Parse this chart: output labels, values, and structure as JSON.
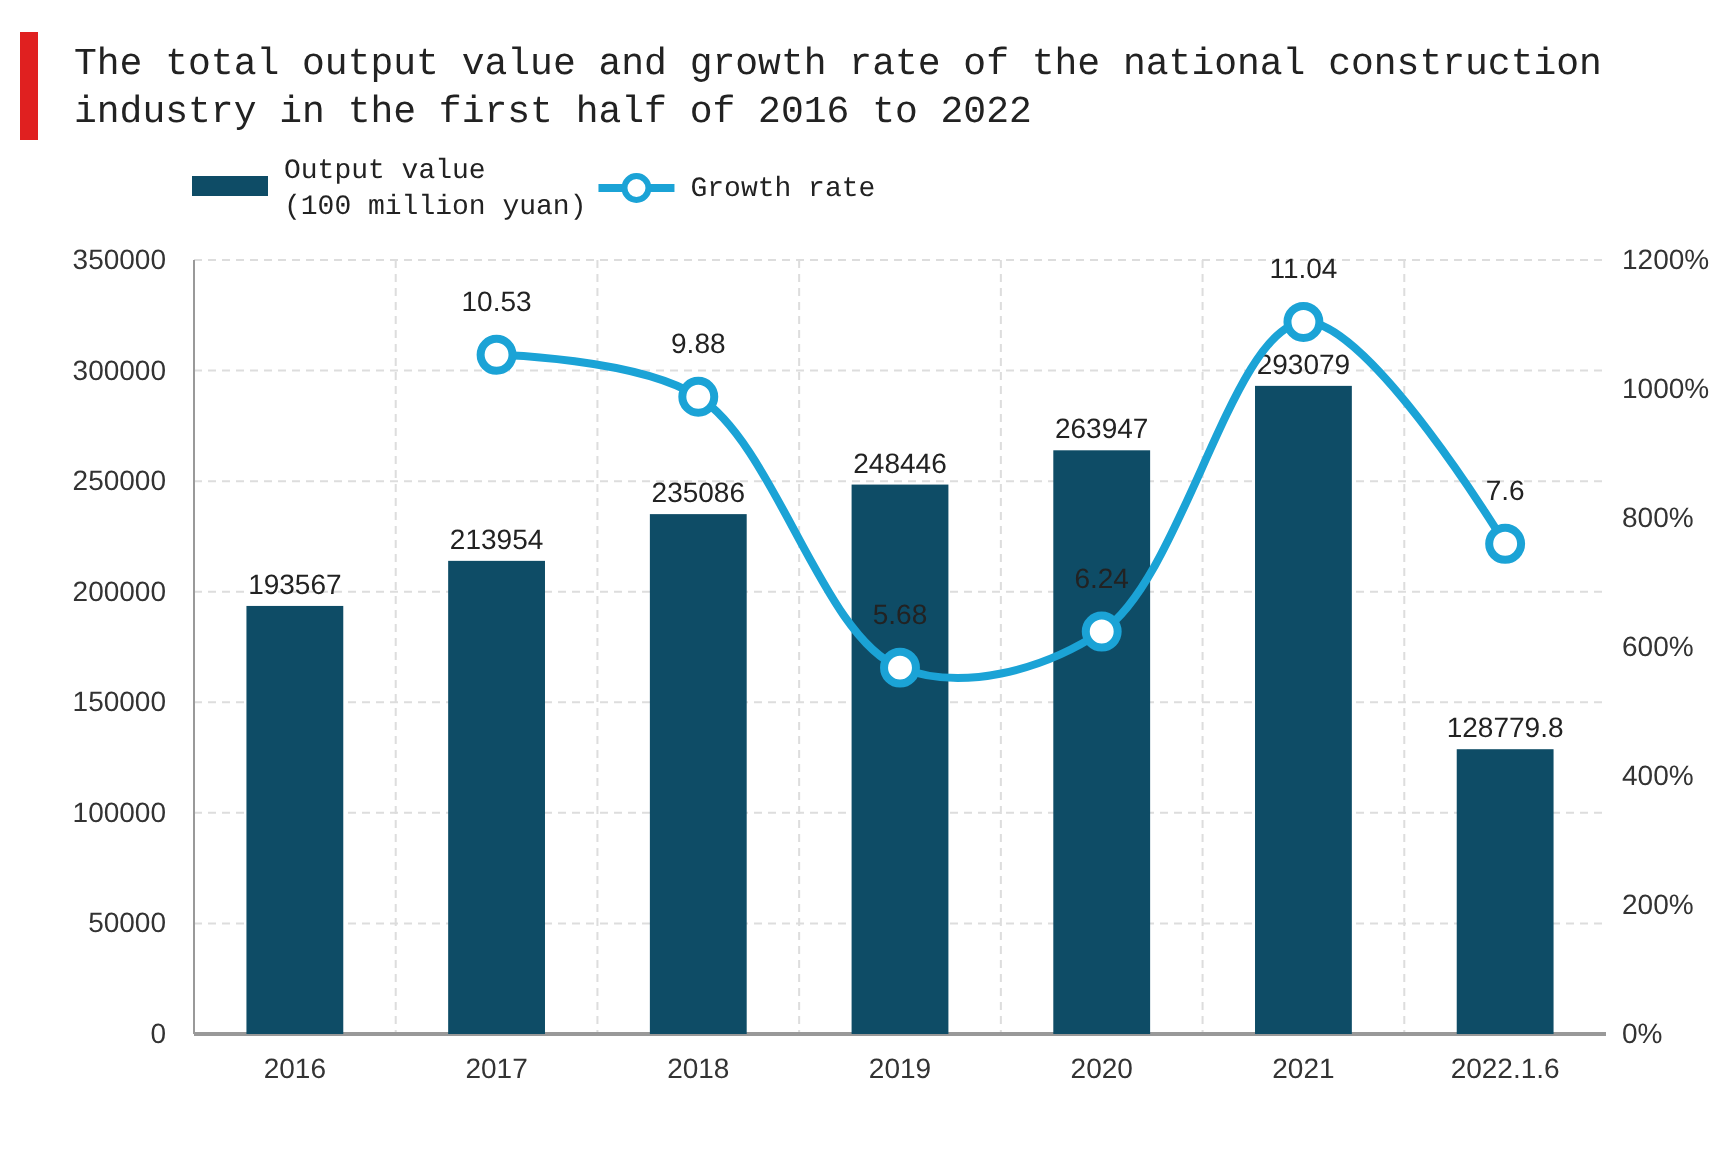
{
  "chart_data": {
    "type": "bar",
    "title": "The total output value and growth rate of the national construction\nindustry in the first half of 2016 to 2022",
    "categories": [
      "2016",
      "2017",
      "2018",
      "2019",
      "2020",
      "2021",
      "2022.1.6"
    ],
    "series": [
      {
        "name": "Output value\n(100 million yuan)",
        "color": "#0e4c66",
        "values": [
          193567,
          213954,
          235086,
          248446,
          263947,
          293079,
          128779.8
        ]
      },
      {
        "name": "Growth rate",
        "type": "line",
        "axis": "y2",
        "color": "#1ba3d6",
        "marker": "circle",
        "values": [
          null,
          10.53,
          9.88,
          5.68,
          6.24,
          11.04,
          7.6
        ]
      }
    ],
    "ylim": [
      0,
      350000
    ],
    "yticks": [
      0,
      50000,
      100000,
      150000,
      200000,
      250000,
      300000,
      350000
    ],
    "y2lim": [
      0,
      12
    ],
    "y2ticks": [
      {
        "value": 0,
        "label": "0%"
      },
      {
        "value": 2,
        "label": "200%"
      },
      {
        "value": 4,
        "label": "400%"
      },
      {
        "value": 6,
        "label": "600%"
      },
      {
        "value": 8,
        "label": "800%"
      },
      {
        "value": 10,
        "label": "1000%"
      },
      {
        "value": 12,
        "label": "1200%"
      }
    ],
    "grid": true,
    "legend": "top left",
    "data_labels": true
  }
}
